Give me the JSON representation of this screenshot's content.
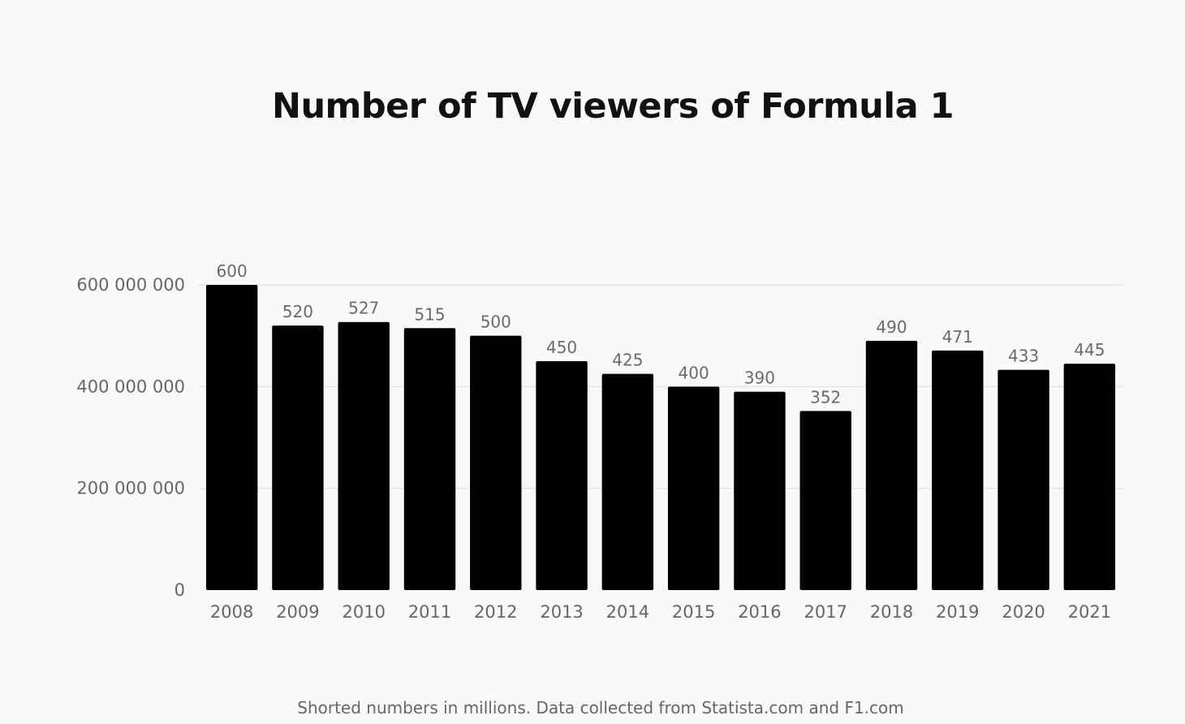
{
  "chart_data": {
    "type": "bar",
    "title": "Number of TV viewers of Formula 1",
    "footnote": "Shorted numbers in millions. Data collected from Statista.com and F1.com",
    "categories": [
      "2008",
      "2009",
      "2010",
      "2011",
      "2012",
      "2013",
      "2014",
      "2015",
      "2016",
      "2017",
      "2018",
      "2019",
      "2020",
      "2021"
    ],
    "values": [
      600000000,
      520000000,
      527000000,
      515000000,
      500000000,
      450000000,
      425000000,
      400000000,
      390000000,
      352000000,
      490000000,
      471000000,
      433000000,
      445000000
    ],
    "data_labels": [
      "600",
      "520",
      "527",
      "515",
      "500",
      "450",
      "425",
      "400",
      "390",
      "352",
      "490",
      "471",
      "433",
      "445"
    ],
    "yticks": [
      0,
      200000000,
      400000000,
      600000000
    ],
    "ytick_labels": [
      "0",
      "200 000 000",
      "400 000 000",
      "600 000 000"
    ],
    "ylim": [
      0,
      600000000
    ],
    "grid": true,
    "bar_color": "#000000",
    "grid_color": "#e4e4e4"
  }
}
